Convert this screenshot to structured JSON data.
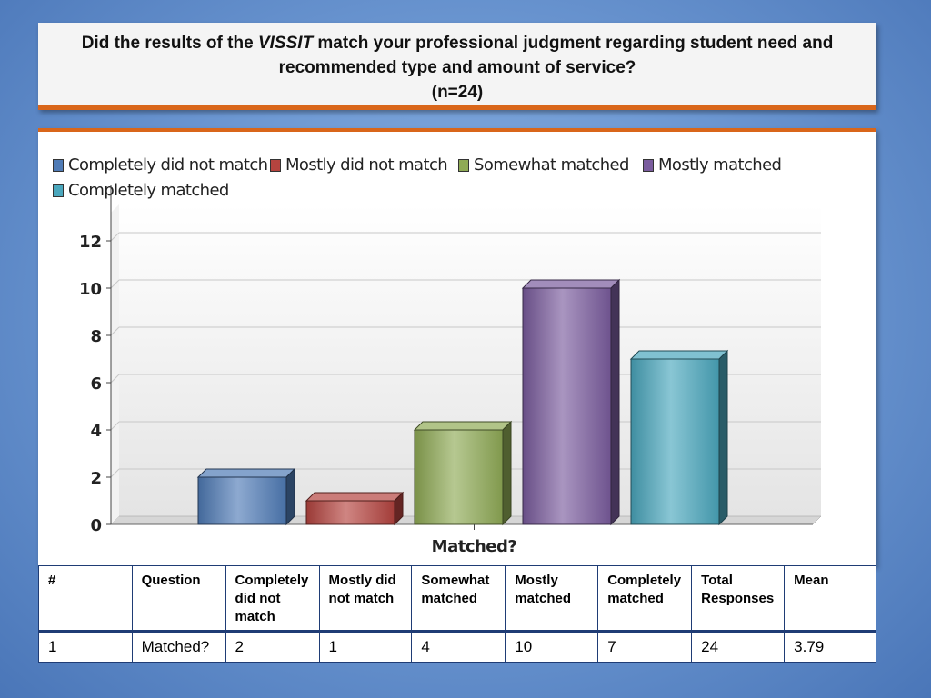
{
  "title": {
    "line1_pre": "Did the results of the ",
    "line1_italic": "VISSIT",
    "line1_post": " match your professional judgment regarding student need and",
    "line2": "recommended type and amount of service?",
    "line3": "(n=24)"
  },
  "chart_data": {
    "type": "bar",
    "categories": [
      "Matched?"
    ],
    "xlabel": "Matched?",
    "ylabel": "",
    "ylim": [
      0,
      12
    ],
    "yticks": [
      0,
      2,
      4,
      6,
      8,
      10,
      12
    ],
    "grid": true,
    "legend_placement": "top",
    "series": [
      {
        "name": "Completely did not match",
        "values": [
          2
        ],
        "color": "#4f7bb6"
      },
      {
        "name": "Mostly did not match",
        "values": [
          1
        ],
        "color": "#b5443f"
      },
      {
        "name": "Somewhat matched",
        "values": [
          4
        ],
        "color": "#8faa55"
      },
      {
        "name": "Mostly matched",
        "values": [
          10
        ],
        "color": "#7a5c9e"
      },
      {
        "name": "Completely matched",
        "values": [
          7
        ],
        "color": "#4aa7bd"
      }
    ]
  },
  "table": {
    "headers": [
      "#",
      "Question",
      "Completely did not match",
      "Mostly did not match",
      "Somewhat matched",
      "Mostly matched",
      "Completely matched",
      "Total Responses",
      "Mean"
    ],
    "rows": [
      [
        "1",
        "Matched?",
        "2",
        "1",
        "4",
        "10",
        "7",
        "24",
        "3.79"
      ]
    ]
  }
}
